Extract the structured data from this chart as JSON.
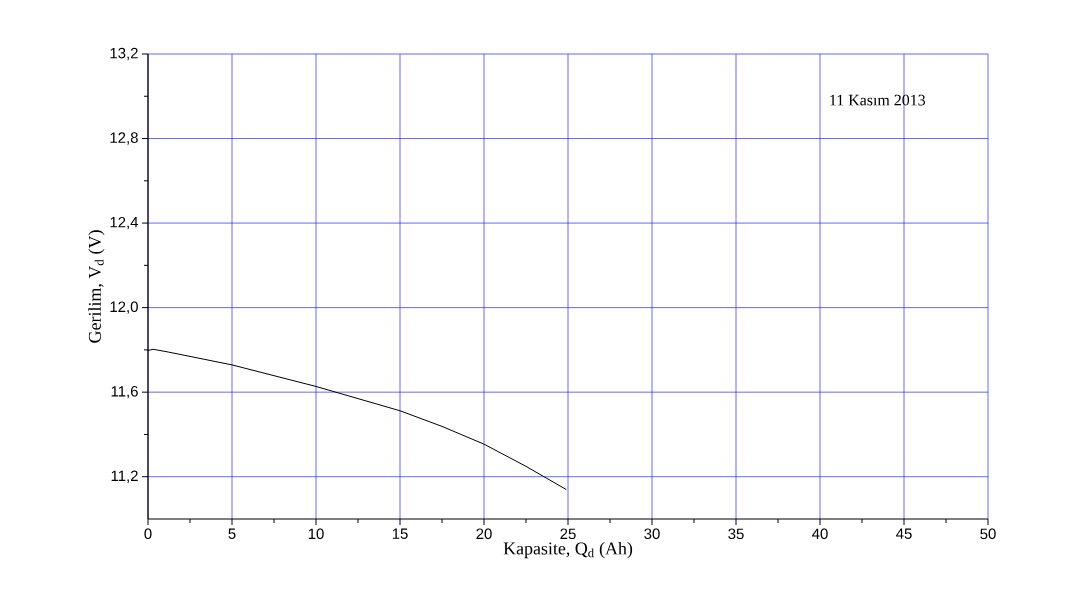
{
  "chart_data": {
    "type": "line",
    "xlabel": "Kapasite, Q$_{d}$ (Ah)",
    "ylabel": "Gerilim, V$_{d}$ (V)",
    "annotations": [
      "11 Kasım 2013"
    ],
    "x": [
      0,
      0.3,
      1.2,
      5,
      10,
      15,
      17.5,
      20,
      22.5,
      24.9
    ],
    "series": [
      {
        "color": "#000000",
        "values": [
          11.797,
          11.803,
          11.79,
          11.729,
          11.627,
          11.512,
          11.438,
          11.354,
          11.249,
          11.139
        ]
      }
    ],
    "xlim": [
      0,
      50
    ],
    "ylim": [
      11.0,
      13.2
    ],
    "xticks": [
      0,
      5,
      10,
      15,
      20,
      25,
      30,
      35,
      40,
      45,
      50
    ],
    "yticks": [
      {
        "value": 11.2,
        "label": "11,2"
      },
      {
        "value": 11.6,
        "label": "11,6"
      },
      {
        "value": 12.0,
        "label": "12,0"
      },
      {
        "value": 12.4,
        "label": "12,4"
      },
      {
        "value": 12.8,
        "label": "12,8"
      },
      {
        "value": 13.2,
        "label": "13,2"
      }
    ],
    "grid": true,
    "marker": "none",
    "line_style": "solid"
  }
}
